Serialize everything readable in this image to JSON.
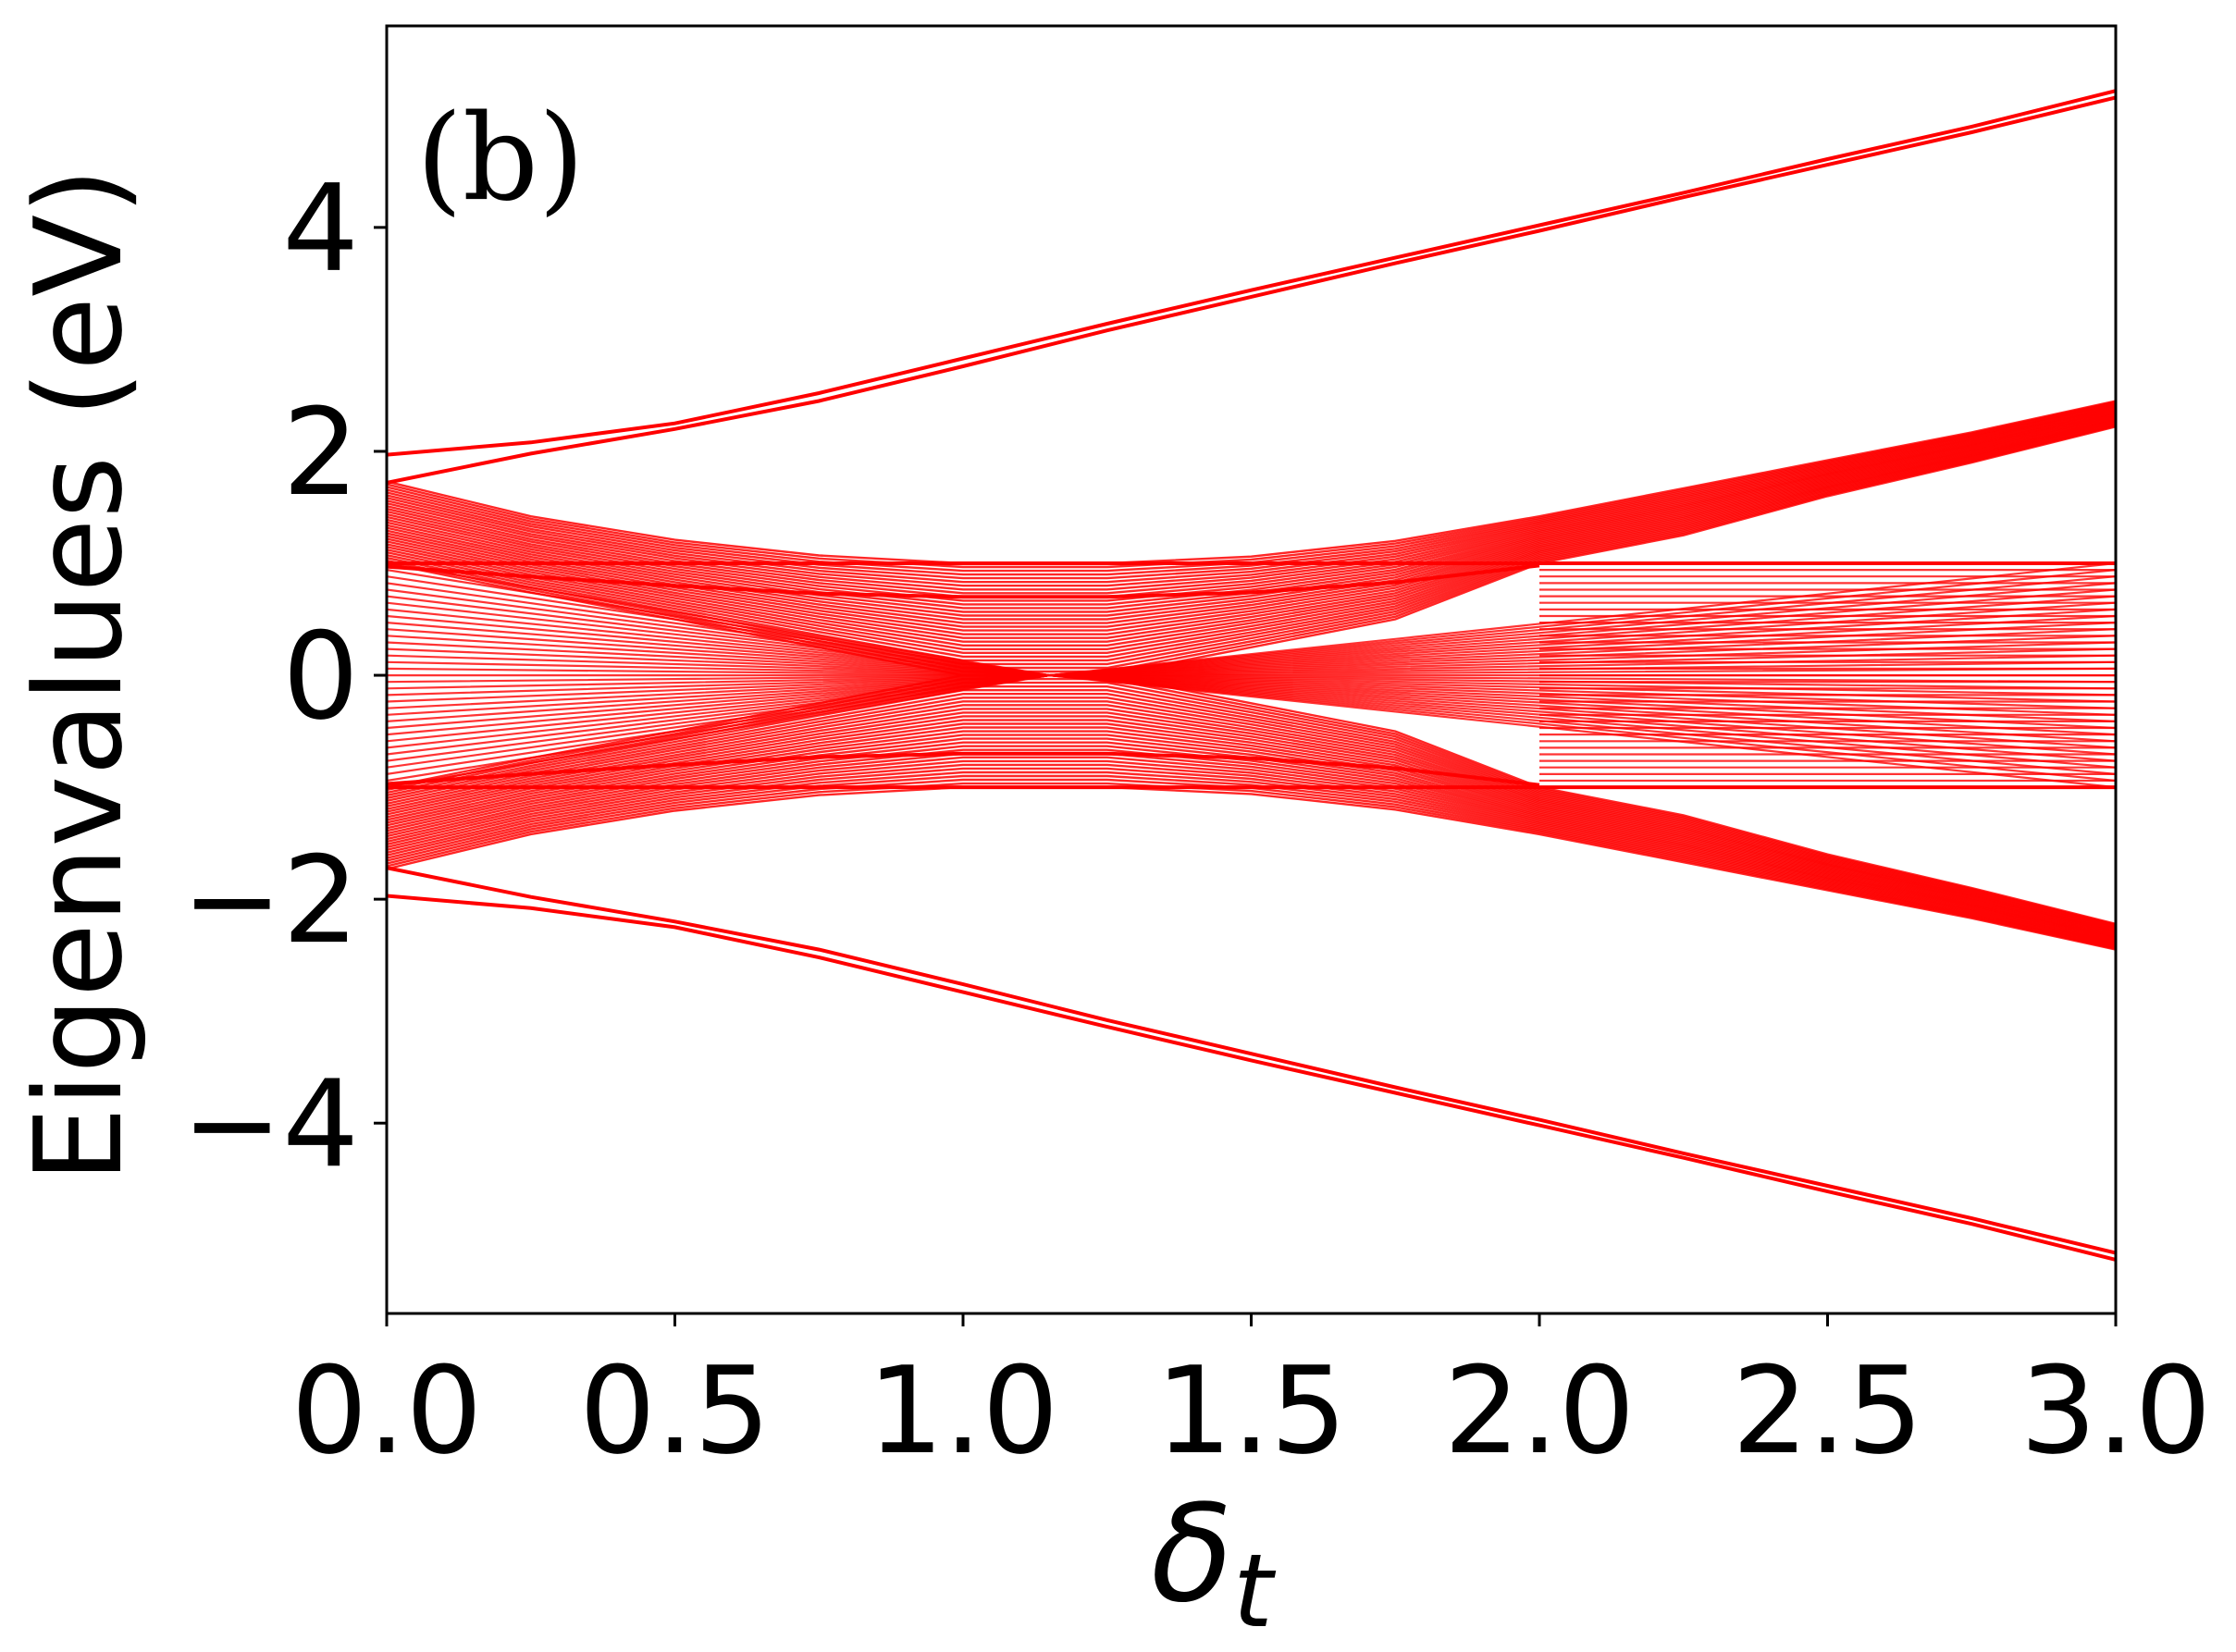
{
  "chart_data": {
    "type": "line",
    "panel_label": "(b)",
    "xlabel_symbol": "δ",
    "xlabel_subscript": "t",
    "ylabel": "Eigenvalues (eV)",
    "xlim": [
      0.0,
      3.0
    ],
    "ylim": [
      -5.7,
      5.8
    ],
    "x_ticks": [
      0.0,
      0.5,
      1.0,
      1.5,
      2.0,
      2.5,
      3.0
    ],
    "x_tick_labels": [
      "0.0",
      "0.5",
      "1.0",
      "1.5",
      "2.0",
      "2.5",
      "3.0"
    ],
    "y_ticks": [
      -4,
      -2,
      0,
      2,
      4
    ],
    "y_tick_labels": [
      "−4",
      "−2",
      "0",
      "2",
      "4"
    ],
    "grid": false,
    "legend": "none",
    "line_color": "#ff0000",
    "critical_x": 1.15,
    "series": [
      {
        "group": "upper-outer-edge-pair",
        "x": [
          0.0,
          0.25,
          0.5,
          0.75,
          1.0,
          1.25,
          1.5,
          1.75,
          2.0,
          2.25,
          2.5,
          2.75,
          3.0
        ],
        "curves": [
          [
            1.97,
            2.08,
            2.25,
            2.52,
            2.83,
            3.14,
            3.44,
            3.73,
            4.02,
            4.31,
            4.61,
            4.9,
            5.22
          ],
          [
            1.72,
            1.98,
            2.2,
            2.45,
            2.76,
            3.08,
            3.38,
            3.68,
            3.97,
            4.27,
            4.56,
            4.85,
            5.16
          ]
        ]
      },
      {
        "group": "lower-outer-edge-pair",
        "x": [
          0.0,
          0.25,
          0.5,
          0.75,
          1.0,
          1.25,
          1.5,
          1.75,
          2.0,
          2.25,
          2.5,
          2.75,
          3.0
        ],
        "curves": [
          [
            -1.97,
            -2.08,
            -2.25,
            -2.52,
            -2.83,
            -3.14,
            -3.44,
            -3.73,
            -4.02,
            -4.31,
            -4.61,
            -4.9,
            -5.22
          ],
          [
            -1.72,
            -1.98,
            -2.2,
            -2.45,
            -2.76,
            -3.08,
            -3.38,
            -3.68,
            -3.97,
            -4.27,
            -4.56,
            -4.85,
            -5.16
          ]
        ]
      },
      {
        "group": "inner-in-gap-pair",
        "x": [
          0.0,
          0.25,
          0.5,
          0.75,
          1.0,
          1.25,
          1.5,
          1.75,
          2.0
        ],
        "curves": [
          [
            0.97,
            0.88,
            0.8,
            0.73,
            0.7,
            0.7,
            0.74,
            0.83,
            0.98
          ],
          [
            -0.97,
            -0.88,
            -0.8,
            -0.73,
            -0.7,
            -0.7,
            -0.74,
            -0.83,
            -0.98
          ]
        ]
      },
      {
        "group": "bulk-band-edges",
        "x": [
          0.0,
          0.25,
          0.5,
          0.75,
          1.0,
          1.25,
          1.5,
          1.75,
          2.0,
          2.25,
          2.5,
          2.75,
          3.0
        ],
        "upper_outer": [
          1.73,
          1.42,
          1.21,
          1.07,
          1.0,
          1.0,
          1.06,
          1.2,
          1.42,
          1.67,
          1.92,
          2.17,
          2.45
        ],
        "upper_inner": [
          1.0,
          0.74,
          0.5,
          0.25,
          0.0,
          0.0,
          0.25,
          0.5,
          1.0,
          1.25,
          1.6,
          1.9,
          2.22
        ],
        "lower_outer": [
          -1.73,
          -1.42,
          -1.21,
          -1.07,
          -1.0,
          -1.0,
          -1.06,
          -1.2,
          -1.42,
          -1.67,
          -1.92,
          -2.17,
          -2.45
        ],
        "lower_inner": [
          -1.0,
          -0.74,
          -0.5,
          -0.25,
          0.0,
          0.0,
          -0.25,
          -0.5,
          -1.0,
          -1.25,
          -1.6,
          -1.9,
          -2.22
        ],
        "flat_levels": [
          1.0,
          -1.0
        ]
      }
    ]
  }
}
